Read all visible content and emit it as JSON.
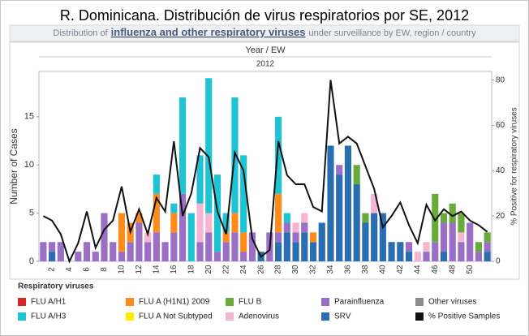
{
  "chart_data": {
    "type": "bar",
    "title": "R. Dominicana. Distribución de virus respiratorios por SE, 2012",
    "subtitle": [
      "Distribution of",
      "influenza and other respiratory viruses",
      "under surveillance by EW, region / country"
    ],
    "x_header": "Year / EW",
    "facet": "2012",
    "ylabel": "Number of Cases",
    "y2label": "% Positive for respiratory viruses",
    "legend_title": "Respiratory viruses",
    "stacked": true,
    "categories": [
      null,
      2,
      null,
      4,
      null,
      6,
      null,
      8,
      null,
      10,
      null,
      12,
      null,
      14,
      null,
      16,
      null,
      18,
      null,
      20,
      null,
      22,
      null,
      24,
      null,
      26,
      null,
      28,
      null,
      30,
      null,
      32,
      null,
      34,
      null,
      36,
      null,
      38,
      null,
      40,
      null,
      42,
      null,
      44,
      null,
      46,
      null,
      48,
      null,
      50,
      null,
      null
    ],
    "ylim": [
      0,
      19.7
    ],
    "yticks": [
      0,
      5,
      10,
      15
    ],
    "y2lim": [
      0,
      83.8
    ],
    "y2ticks": [
      0,
      20,
      40,
      60,
      80
    ],
    "series": [
      {
        "name": "SRV",
        "color": "#2a6eb0",
        "values": [
          0,
          1,
          0,
          0,
          0,
          0,
          0,
          0,
          0,
          0,
          0,
          0,
          0,
          0,
          0,
          0,
          0,
          0,
          0,
          0,
          0,
          0,
          0,
          0,
          0,
          1,
          0,
          2,
          3,
          2,
          3,
          2,
          4,
          12,
          9,
          12,
          8,
          4,
          5,
          5,
          2,
          2,
          1,
          0,
          0,
          0,
          1,
          0,
          0,
          0,
          0,
          1
        ]
      },
      {
        "name": "Parainfluenza",
        "color": "#9b6fc6",
        "values": [
          2,
          1,
          2,
          0,
          1,
          2,
          1,
          5,
          2,
          1,
          2,
          4,
          2,
          3,
          2,
          3,
          7,
          0,
          2,
          3,
          1,
          2,
          3,
          1,
          3,
          0,
          3,
          1,
          1,
          1,
          1,
          0,
          0,
          0,
          1,
          0,
          0,
          0,
          0,
          0,
          0,
          0,
          1,
          0,
          1,
          2,
          3,
          4,
          2,
          4,
          1,
          1
        ]
      },
      {
        "name": "FLU A (H1N1) 2009",
        "color": "#ff8c1a",
        "values": [
          0,
          0,
          0,
          0,
          0,
          0,
          0,
          0,
          0,
          4,
          2,
          1,
          0,
          4,
          0,
          2,
          0,
          0,
          0,
          0,
          0,
          1,
          2,
          2,
          0,
          0,
          0,
          4,
          0,
          0,
          0,
          1,
          0,
          0,
          0,
          0,
          0,
          0,
          0,
          0,
          0,
          0,
          0,
          0,
          0,
          0,
          0,
          0,
          0,
          0,
          0,
          0
        ]
      },
      {
        "name": "Adenovirus",
        "color": "#f5b5d0",
        "values": [
          0,
          0,
          0,
          0,
          0,
          0,
          0,
          0,
          0,
          0,
          0,
          0,
          1,
          0,
          0,
          0,
          0,
          0,
          4,
          2,
          0,
          0,
          0,
          0,
          0,
          0,
          0,
          0,
          0,
          1,
          1,
          0,
          0,
          0,
          0,
          0,
          0,
          0,
          2,
          0,
          0,
          0,
          0,
          1,
          1,
          0,
          0,
          0,
          1,
          0,
          0,
          0
        ]
      },
      {
        "name": "FLU A/H3",
        "color": "#1fc4d4",
        "values": [
          0,
          0,
          0,
          0,
          0,
          0,
          0,
          0,
          0,
          0,
          0,
          0,
          0,
          2,
          0,
          1,
          10,
          5,
          5,
          14,
          8,
          2,
          12,
          8,
          0,
          0,
          0,
          8,
          1,
          0,
          0,
          0,
          0,
          0,
          0,
          0,
          0,
          0,
          0,
          0,
          0,
          0,
          0,
          0,
          0,
          0,
          0,
          0,
          0,
          0,
          0,
          0
        ]
      },
      {
        "name": "FLU B",
        "color": "#6aaa3a",
        "values": [
          0,
          0,
          0,
          0,
          0,
          0,
          0,
          0,
          0,
          0,
          0,
          0,
          0,
          0,
          0,
          0,
          0,
          0,
          0,
          0,
          0,
          0,
          0,
          0,
          0,
          0,
          0,
          0,
          0,
          0,
          0,
          0,
          0,
          0,
          0,
          0,
          2,
          1,
          0,
          0,
          0,
          0,
          0,
          0,
          0,
          5,
          1,
          2,
          2,
          0,
          1,
          1
        ]
      },
      {
        "name": "FLU A/H1",
        "color": "#d62728",
        "values": [
          0,
          0,
          0,
          0,
          0,
          0,
          0,
          0,
          0,
          0,
          0,
          0,
          0,
          0,
          0,
          0,
          0,
          0,
          0,
          0,
          0,
          0,
          0,
          0,
          0,
          0,
          0,
          0,
          0,
          0,
          0,
          0,
          0,
          0,
          0,
          0,
          0,
          0,
          0,
          0,
          0,
          0,
          0,
          0,
          0,
          0,
          0,
          0,
          0,
          0,
          0,
          0
        ]
      },
      {
        "name": "FLU A Not Subtyped",
        "color": "#ffee00",
        "values": [
          0,
          0,
          0,
          0,
          0,
          0,
          0,
          0,
          0,
          0,
          0,
          0,
          0,
          0,
          0,
          0,
          0,
          0,
          0,
          0,
          0,
          0,
          0,
          0,
          0,
          0,
          0,
          0,
          0,
          0,
          0,
          0,
          0,
          0,
          0,
          0,
          0,
          0,
          0,
          0,
          0,
          0,
          0,
          0,
          0,
          0,
          0,
          0,
          0,
          0,
          0,
          0
        ]
      },
      {
        "name": "Other viruses",
        "color": "#8c8c8c",
        "values": [
          0,
          0,
          0,
          0,
          0,
          0,
          0,
          0,
          0,
          0,
          0,
          0,
          0,
          0,
          0,
          0,
          0,
          0,
          0,
          0,
          0,
          0,
          0,
          0,
          0,
          0,
          0,
          0,
          0,
          0,
          0,
          0,
          0,
          0,
          0,
          0,
          0,
          0,
          0,
          0,
          0,
          0,
          0,
          0,
          0,
          0,
          0,
          0,
          0,
          0,
          0,
          0
        ]
      },
      {
        "name": "% Positive Samples",
        "color": "#111111",
        "type": "line",
        "axis": "y2",
        "values": [
          20,
          18,
          12,
          0,
          8,
          22,
          6,
          14,
          18,
          33,
          13,
          23,
          12,
          28,
          22,
          53,
          20,
          30,
          50,
          46,
          22,
          12,
          48,
          40,
          10,
          2,
          5,
          53,
          38,
          34,
          34,
          24,
          22,
          80,
          52,
          55,
          52,
          42,
          32,
          15,
          20,
          26,
          16,
          8,
          25,
          18,
          23,
          20,
          22,
          18,
          16,
          13
        ]
      }
    ]
  }
}
